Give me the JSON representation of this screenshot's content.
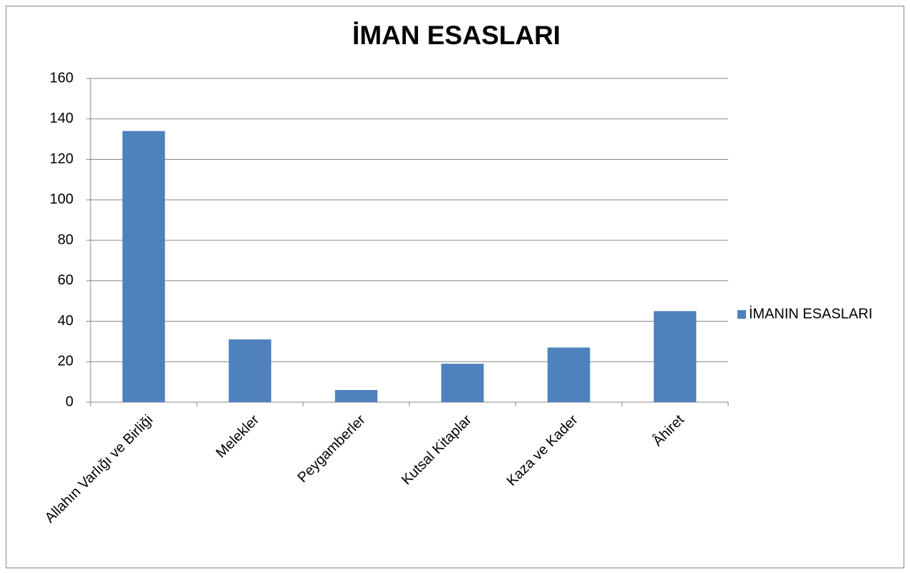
{
  "chart_data": {
    "type": "bar",
    "title": "İMAN ESASLARI",
    "categories": [
      "Allahın Varlığı ve Birliği",
      "Melekler",
      "Peygamberler",
      "Kutsal Kitaplar",
      "Kaza ve Kader",
      "Âhiret"
    ],
    "series": [
      {
        "name": "İMANIN ESASLARI",
        "color": "#4f81bd",
        "values": [
          134,
          31,
          6,
          19,
          27,
          45
        ]
      }
    ],
    "ylim": [
      0,
      160
    ],
    "yticks": [
      0,
      20,
      40,
      60,
      80,
      100,
      120,
      140,
      160
    ],
    "grid": true,
    "legend": "right"
  }
}
